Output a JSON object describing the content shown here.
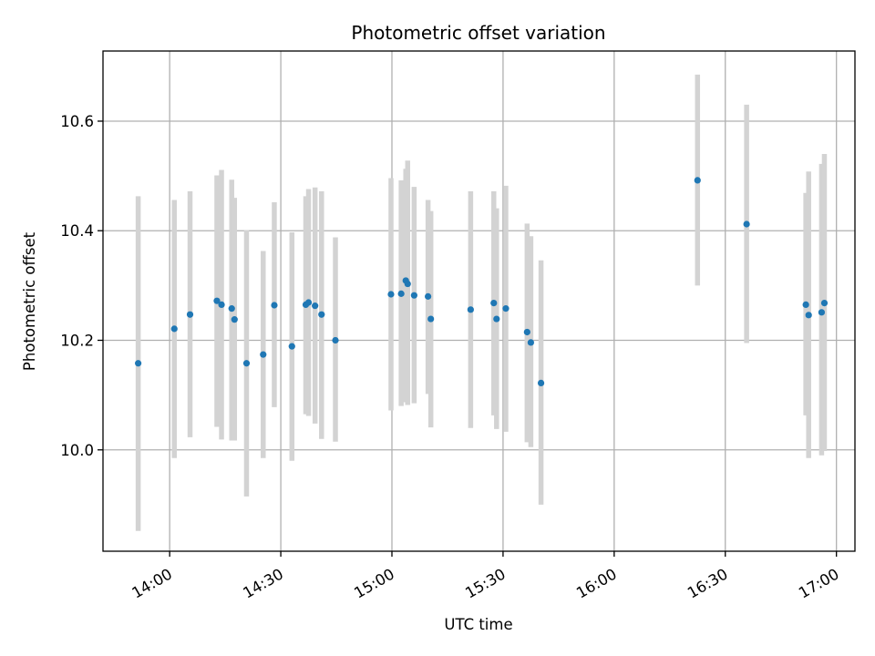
{
  "chart_data": {
    "type": "scatter",
    "title": "Photometric offset variation",
    "xlabel": "UTC time",
    "ylabel": "Photometric offset",
    "x_unit": "time of day (UTC)",
    "xlim": [
      "13:42",
      "17:05"
    ],
    "ylim": [
      9.815,
      10.728
    ],
    "x_ticks": [
      "14:00",
      "14:30",
      "15:00",
      "15:30",
      "16:00",
      "16:30",
      "17:00"
    ],
    "y_ticks": [
      10.0,
      10.2,
      10.4,
      10.6
    ],
    "y_tick_labels": [
      "10.0",
      "10.2",
      "10.4",
      "10.6"
    ],
    "grid": true,
    "point_color": "#1f77b4",
    "errorbar_color": "#d3d3d3",
    "points": [
      {
        "x": "13:51:30",
        "y": 10.158,
        "ylow": 9.852,
        "yhigh": 10.463
      },
      {
        "x": "14:01:15",
        "y": 10.221,
        "ylow": 9.985,
        "yhigh": 10.456
      },
      {
        "x": "14:05:30",
        "y": 10.247,
        "ylow": 10.023,
        "yhigh": 10.472
      },
      {
        "x": "14:12:45",
        "y": 10.272,
        "ylow": 10.042,
        "yhigh": 10.501
      },
      {
        "x": "14:14:00",
        "y": 10.265,
        "ylow": 10.019,
        "yhigh": 10.511
      },
      {
        "x": "14:16:45",
        "y": 10.258,
        "ylow": 10.017,
        "yhigh": 10.493
      },
      {
        "x": "14:17:30",
        "y": 10.238,
        "ylow": 10.017,
        "yhigh": 10.46
      },
      {
        "x": "14:20:45",
        "y": 10.158,
        "ylow": 9.915,
        "yhigh": 10.401
      },
      {
        "x": "14:25:15",
        "y": 10.174,
        "ylow": 9.985,
        "yhigh": 10.363
      },
      {
        "x": "14:28:15",
        "y": 10.264,
        "ylow": 10.078,
        "yhigh": 10.452
      },
      {
        "x": "14:33:00",
        "y": 10.189,
        "ylow": 9.98,
        "yhigh": 10.397
      },
      {
        "x": "14:36:45",
        "y": 10.265,
        "ylow": 10.065,
        "yhigh": 10.463
      },
      {
        "x": "14:37:30",
        "y": 10.269,
        "ylow": 10.062,
        "yhigh": 10.476
      },
      {
        "x": "14:39:15",
        "y": 10.263,
        "ylow": 10.048,
        "yhigh": 10.479
      },
      {
        "x": "14:41:00",
        "y": 10.247,
        "ylow": 10.02,
        "yhigh": 10.472
      },
      {
        "x": "14:44:45",
        "y": 10.2,
        "ylow": 10.015,
        "yhigh": 10.388
      },
      {
        "x": "14:59:45",
        "y": 10.284,
        "ylow": 10.072,
        "yhigh": 10.496
      },
      {
        "x": "15:02:30",
        "y": 10.285,
        "ylow": 10.08,
        "yhigh": 10.492
      },
      {
        "x": "15:03:45",
        "y": 10.309,
        "ylow": 10.087,
        "yhigh": 10.513
      },
      {
        "x": "15:04:15",
        "y": 10.303,
        "ylow": 10.082,
        "yhigh": 10.528
      },
      {
        "x": "15:06:00",
        "y": 10.282,
        "ylow": 10.085,
        "yhigh": 10.48
      },
      {
        "x": "15:09:45",
        "y": 10.28,
        "ylow": 10.102,
        "yhigh": 10.456
      },
      {
        "x": "15:10:30",
        "y": 10.239,
        "ylow": 10.041,
        "yhigh": 10.436
      },
      {
        "x": "15:21:15",
        "y": 10.256,
        "ylow": 10.04,
        "yhigh": 10.472
      },
      {
        "x": "15:27:30",
        "y": 10.268,
        "ylow": 10.063,
        "yhigh": 10.472
      },
      {
        "x": "15:28:15",
        "y": 10.239,
        "ylow": 10.038,
        "yhigh": 10.441
      },
      {
        "x": "15:30:45",
        "y": 10.258,
        "ylow": 10.033,
        "yhigh": 10.482
      },
      {
        "x": "15:36:30",
        "y": 10.215,
        "ylow": 10.014,
        "yhigh": 10.413
      },
      {
        "x": "15:37:30",
        "y": 10.196,
        "ylow": 10.005,
        "yhigh": 10.39
      },
      {
        "x": "15:40:15",
        "y": 10.122,
        "ylow": 9.9,
        "yhigh": 10.346
      },
      {
        "x": "16:22:30",
        "y": 10.492,
        "ylow": 10.3,
        "yhigh": 10.685
      },
      {
        "x": "16:35:45",
        "y": 10.412,
        "ylow": 10.195,
        "yhigh": 10.63
      },
      {
        "x": "16:51:45",
        "y": 10.265,
        "ylow": 10.063,
        "yhigh": 10.469
      },
      {
        "x": "16:52:30",
        "y": 10.246,
        "ylow": 9.985,
        "yhigh": 10.508
      },
      {
        "x": "16:56:00",
        "y": 10.251,
        "ylow": 9.99,
        "yhigh": 10.522
      },
      {
        "x": "16:56:45",
        "y": 10.268,
        "ylow": 9.998,
        "yhigh": 10.54
      }
    ]
  }
}
